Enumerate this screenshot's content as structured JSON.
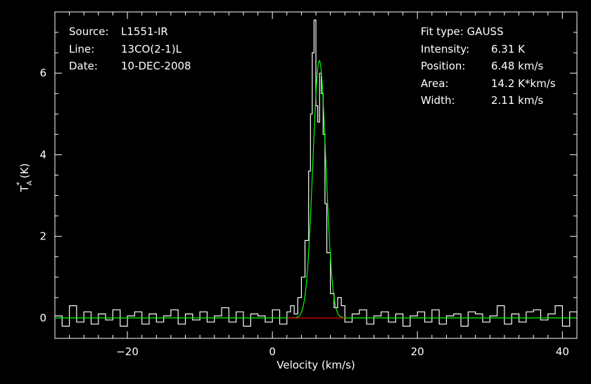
{
  "header_left": [
    {
      "label": "Source:",
      "value": "L1551-IR"
    },
    {
      "label": "Line:",
      "value": "13CO(2-1)L"
    },
    {
      "label": "Date:",
      "value": "10-DEC-2008"
    }
  ],
  "header_right": {
    "fit_type": "Fit type: GAUSS",
    "params": [
      {
        "label": "Intensity:",
        "value": "6.31 K"
      },
      {
        "label": "Position:",
        "value": "6.48 km/s"
      },
      {
        "label": "Area:",
        "value": "14.2 K*km/s"
      },
      {
        "label": "Width:",
        "value": "2.11 km/s"
      }
    ]
  },
  "colors": {
    "background": "#000000",
    "axes": "#ffffff",
    "spectrum": "#ffffff",
    "fit": "#00ff00",
    "baseline": "#ff0000"
  },
  "chart_data": {
    "type": "line",
    "xlabel": "Velocity (km/s)",
    "ylabel": "T*A (K)",
    "xlim": [
      -30,
      42
    ],
    "ylim": [
      -0.5,
      7.5
    ],
    "x_ticks": [
      -20,
      0,
      20,
      40
    ],
    "x_tick_labels": [
      "−20",
      "0",
      "20",
      "40"
    ],
    "y_ticks": [
      0,
      2,
      4,
      6
    ],
    "y_tick_labels": [
      "0",
      "2",
      "4",
      "6"
    ],
    "grid": false,
    "series": [
      {
        "kind": "histogram",
        "x": [
          -30.0,
          -29.0,
          -28.0,
          -27.0,
          -26.0,
          -25.0,
          -24.0,
          -23.0,
          -22.0,
          -21.0,
          -20.0,
          -19.0,
          -18.0,
          -17.0,
          -16.0,
          -15.0,
          -14.0,
          -13.0,
          -12.0,
          -11.0,
          -10.0,
          -9.0,
          -8.0,
          -7.0,
          -6.0,
          -5.0,
          -4.0,
          -3.0,
          -2.0,
          -1.0,
          0.0,
          1.0,
          2.0,
          2.5,
          3.0,
          3.5,
          4.0,
          4.5,
          5.0,
          5.25,
          5.5,
          5.75,
          6.0,
          6.25,
          6.5,
          6.75,
          7.0,
          7.25,
          7.5,
          8.0,
          8.5,
          9.0,
          9.5,
          10.0,
          11.0,
          12.0,
          13.0,
          14.0,
          15.0,
          16.0,
          17.0,
          18.0,
          19.0,
          20.0,
          21.0,
          22.0,
          23.0,
          24.0,
          25.0,
          26.0,
          27.0,
          28.0,
          29.0,
          30.0,
          31.0,
          32.0,
          33.0,
          34.0,
          35.0,
          36.0,
          37.0,
          38.0,
          39.0,
          40.0,
          41.0,
          42.0
        ],
        "values": [
          0.05,
          -0.2,
          0.3,
          -0.1,
          0.15,
          -0.15,
          0.1,
          -0.05,
          0.2,
          -0.2,
          0.05,
          0.15,
          -0.15,
          0.1,
          -0.1,
          0.05,
          0.2,
          -0.15,
          0.1,
          -0.05,
          0.15,
          -0.1,
          0.05,
          0.25,
          -0.1,
          0.15,
          -0.2,
          0.1,
          0.05,
          -0.1,
          0.2,
          -0.15,
          0.15,
          0.3,
          0.1,
          0.5,
          1.0,
          1.9,
          3.6,
          5.0,
          6.5,
          7.3,
          5.2,
          4.8,
          6.0,
          5.5,
          4.5,
          2.8,
          1.6,
          0.6,
          0.25,
          0.5,
          0.3,
          -0.1,
          0.1,
          0.2,
          -0.15,
          0.05,
          0.15,
          -0.1,
          0.1,
          -0.2,
          0.05,
          0.15,
          -0.1,
          0.2,
          -0.15,
          0.05,
          0.1,
          -0.2,
          0.15,
          0.1,
          -0.1,
          0.05,
          0.3,
          -0.15,
          0.1,
          -0.1,
          0.15,
          0.2,
          -0.05,
          0.1,
          0.3,
          -0.2,
          0.15,
          0.05
        ]
      },
      {
        "kind": "gaussian_fit",
        "amplitude": 6.31,
        "center": 6.48,
        "fwhm": 2.11
      },
      {
        "kind": "baseline",
        "x": [
          2,
          10
        ],
        "values": [
          0,
          0
        ]
      }
    ]
  }
}
